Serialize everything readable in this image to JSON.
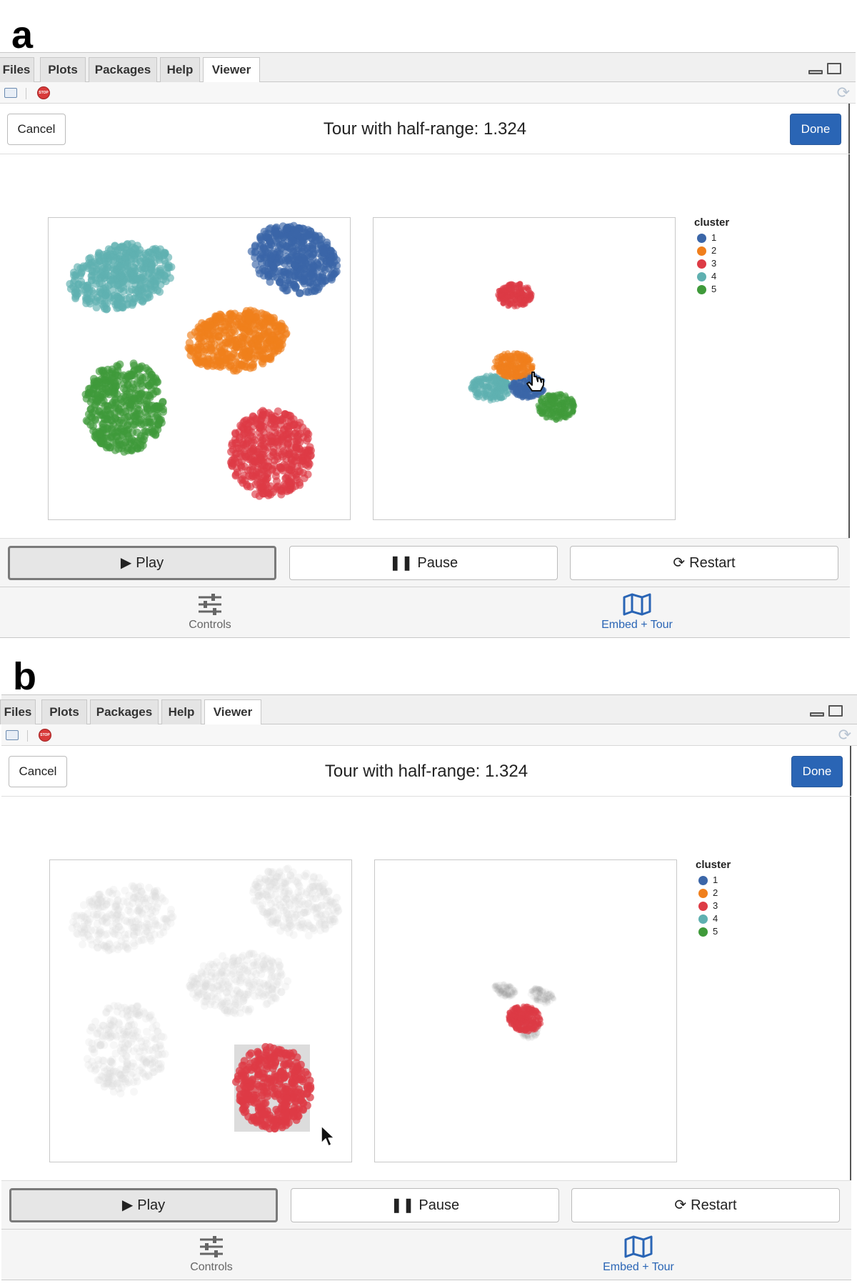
{
  "panels": [
    {
      "letter": "a",
      "tabs": [
        "Files",
        "Plots",
        "Packages",
        "Help",
        "Viewer"
      ],
      "active_tab": "Viewer",
      "cancel_label": "Cancel",
      "title": "Tour with half-range: 1.324",
      "done_label": "Done",
      "legend": {
        "title": "cluster",
        "items": [
          {
            "label": "1",
            "color": "#3b66a8"
          },
          {
            "label": "2",
            "color": "#f07f1c"
          },
          {
            "label": "3",
            "color": "#dd3b45"
          },
          {
            "label": "4",
            "color": "#5fb0b0"
          },
          {
            "label": "5",
            "color": "#3f9a3a"
          }
        ]
      },
      "buttons": {
        "play": "Play",
        "pause": "Pause",
        "restart": "Restart"
      },
      "nav": {
        "controls": "Controls",
        "embed_tour": "Embed + Tour"
      },
      "state": "tour_all_clusters",
      "cursor": "hand-pointer"
    },
    {
      "letter": "b",
      "tabs": [
        "Files",
        "Plots",
        "Packages",
        "Help",
        "Viewer"
      ],
      "active_tab": "Viewer",
      "cancel_label": "Cancel",
      "title": "Tour with half-range: 1.324",
      "done_label": "Done",
      "legend": {
        "title": "cluster",
        "items": [
          {
            "label": "1",
            "color": "#3b66a8"
          },
          {
            "label": "2",
            "color": "#f07f1c"
          },
          {
            "label": "3",
            "color": "#dd3b45"
          },
          {
            "label": "4",
            "color": "#5fb0b0"
          },
          {
            "label": "5",
            "color": "#3f9a3a"
          }
        ]
      },
      "buttons": {
        "play": "Play",
        "pause": "Pause",
        "restart": "Restart"
      },
      "nav": {
        "controls": "Controls",
        "embed_tour": "Embed + Tour"
      },
      "state": "brush_cluster_3",
      "cursor": "arrow-pointer"
    }
  ]
}
